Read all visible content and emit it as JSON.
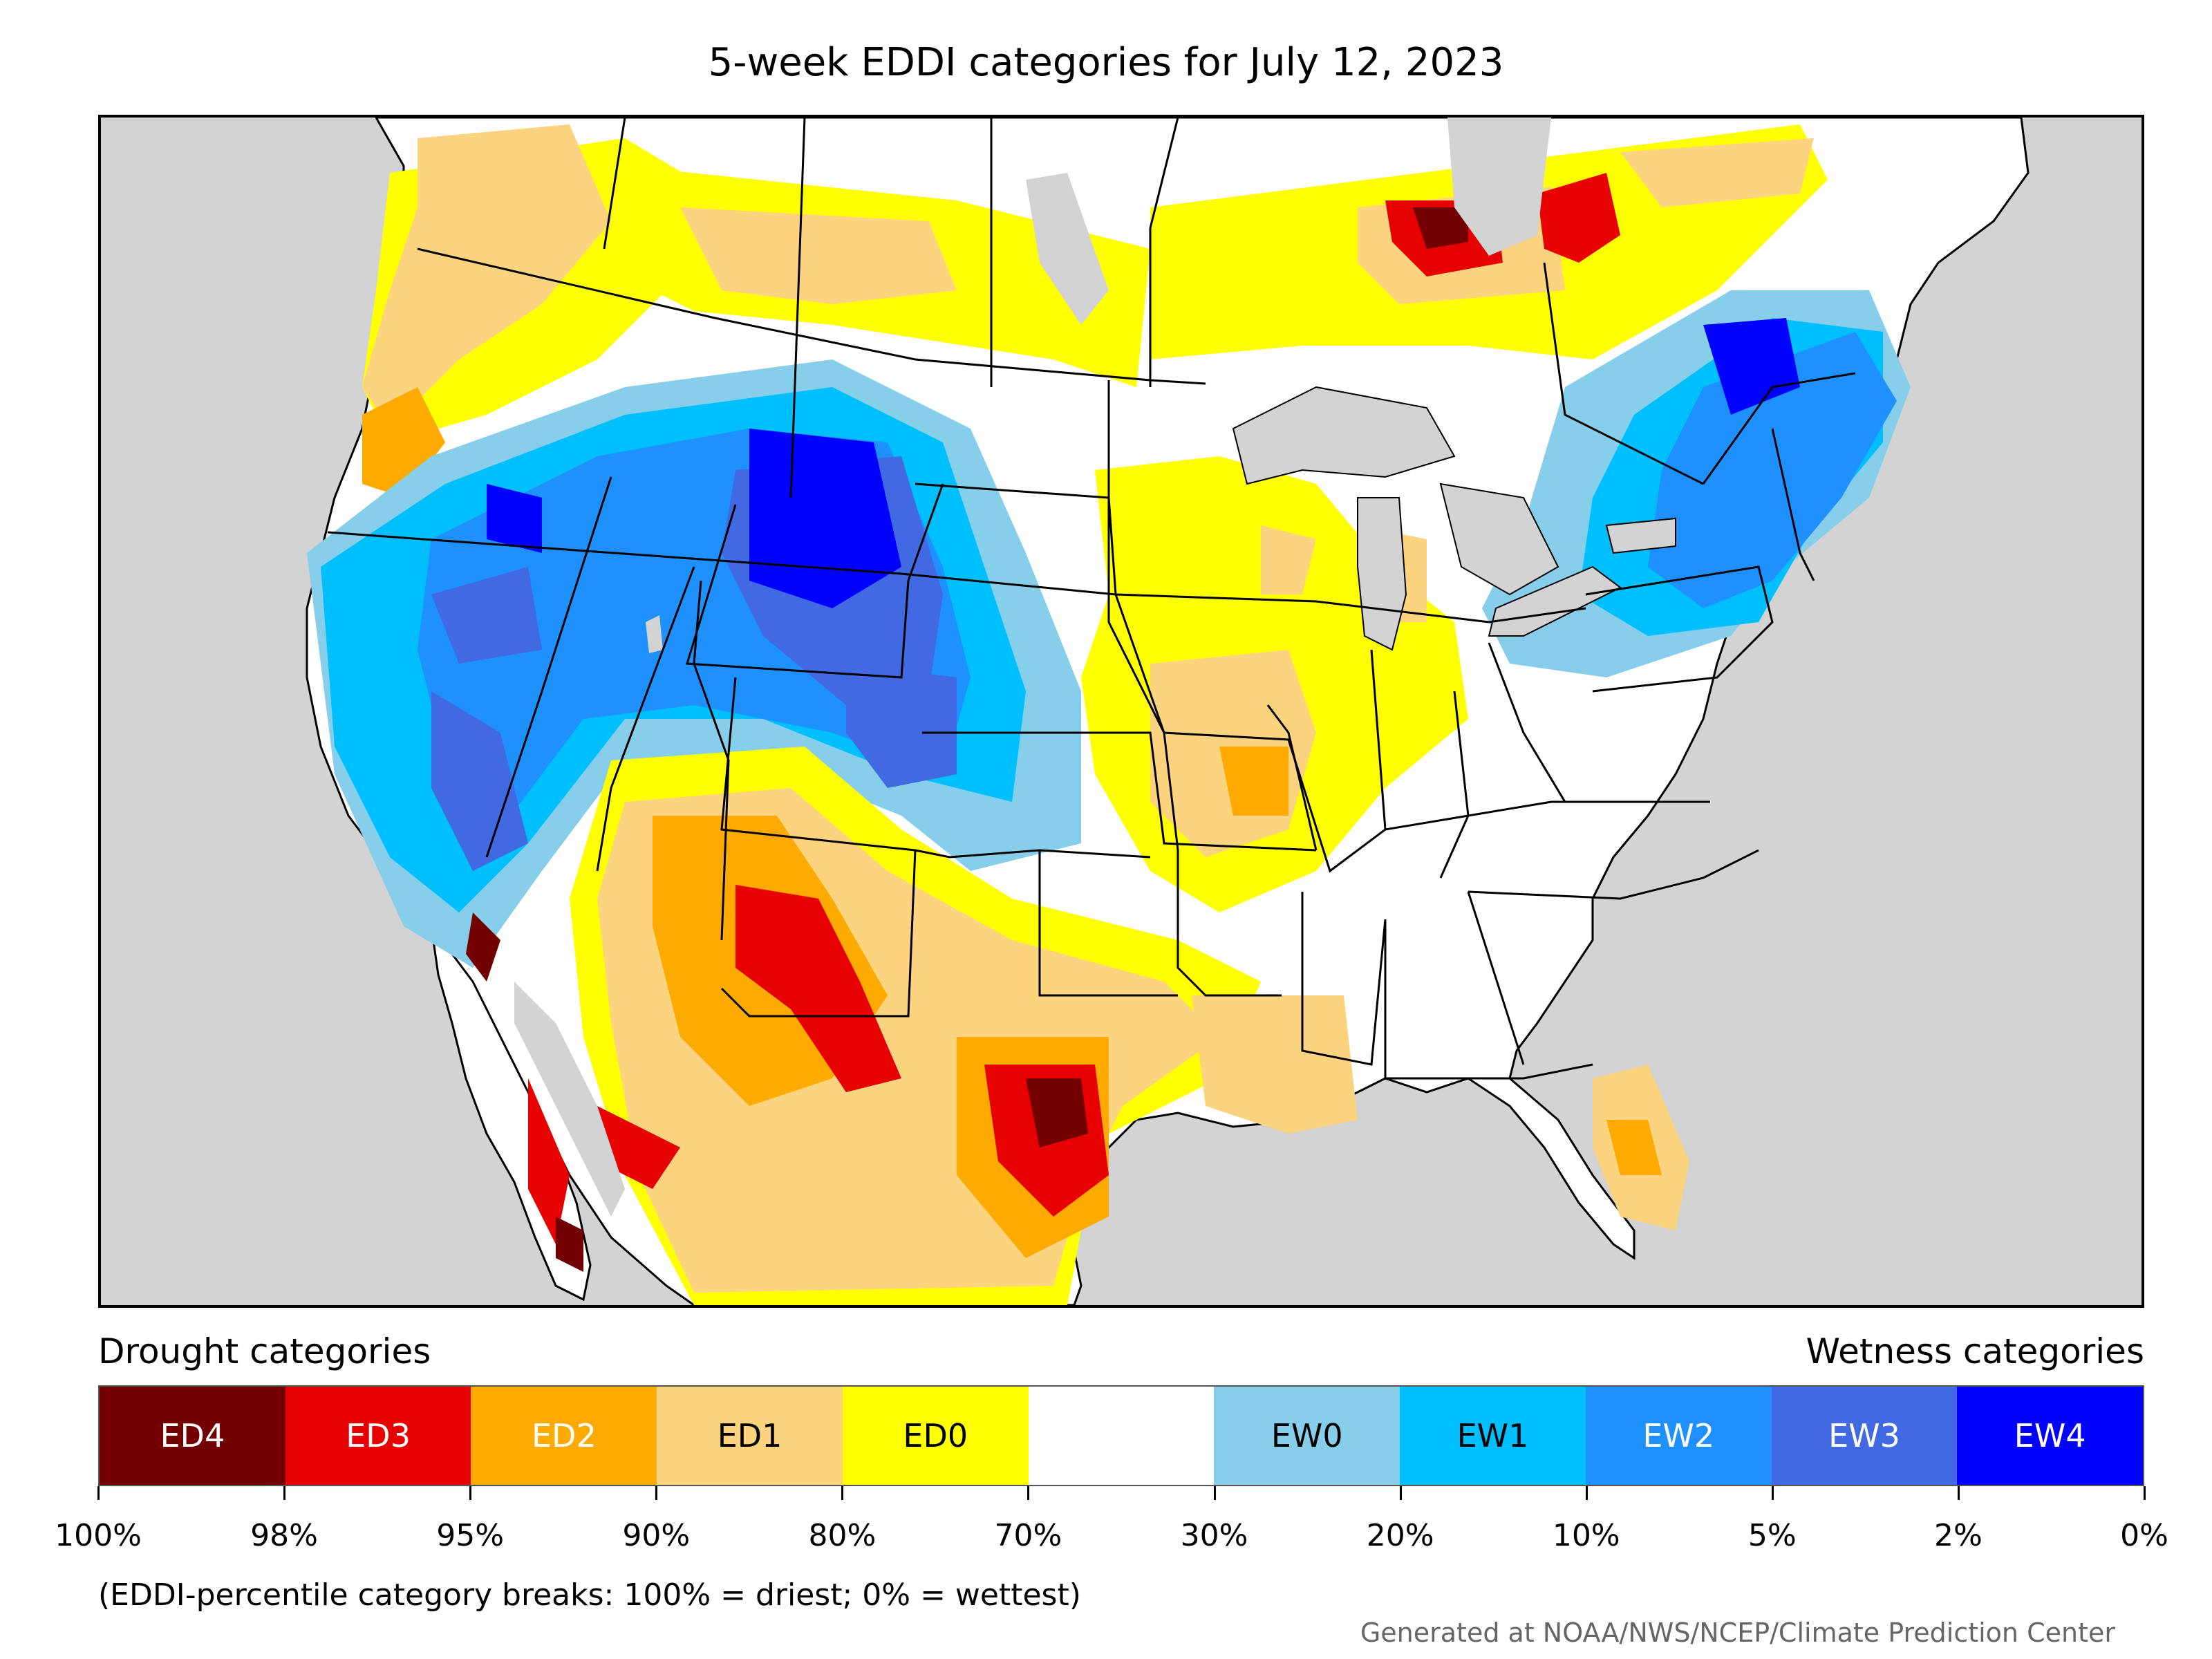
{
  "title": "5-week EDDI categories for July 12, 2023",
  "legend": {
    "drought_heading": "Drought categories",
    "wetness_heading": "Wetness categories",
    "categories": [
      {
        "label": "ED4",
        "color": "#730000",
        "text_color": "#ffffff"
      },
      {
        "label": "ED3",
        "color": "#e60000",
        "text_color": "#ffffff"
      },
      {
        "label": "ED2",
        "color": "#ffaa00",
        "text_color": "#ffffff"
      },
      {
        "label": "ED1",
        "color": "#fcd37f",
        "text_color": "#000000"
      },
      {
        "label": "ED0",
        "color": "#ffff00",
        "text_color": "#000000"
      },
      {
        "label": "",
        "color": "#ffffff",
        "text_color": "#000000"
      },
      {
        "label": "EW0",
        "color": "#87ceeb",
        "text_color": "#000000"
      },
      {
        "label": "EW1",
        "color": "#00bfff",
        "text_color": "#000000"
      },
      {
        "label": "EW2",
        "color": "#1e90ff",
        "text_color": "#ffffff"
      },
      {
        "label": "EW3",
        "color": "#4169e1",
        "text_color": "#ffffff"
      },
      {
        "label": "EW4",
        "color": "#0000ff",
        "text_color": "#ffffff"
      }
    ],
    "breaks": [
      "100%",
      "98%",
      "95%",
      "90%",
      "80%",
      "70%",
      "30%",
      "20%",
      "10%",
      "5%",
      "2%",
      "0%"
    ]
  },
  "note": "(EDDI-percentile category breaks: 100% = driest; 0% = wettest)",
  "credit": "Generated at NOAA/NWS/NCEP/Climate Prediction Center",
  "colors": {
    "water": "#d3d3d3",
    "land_background": "#ffffff"
  }
}
